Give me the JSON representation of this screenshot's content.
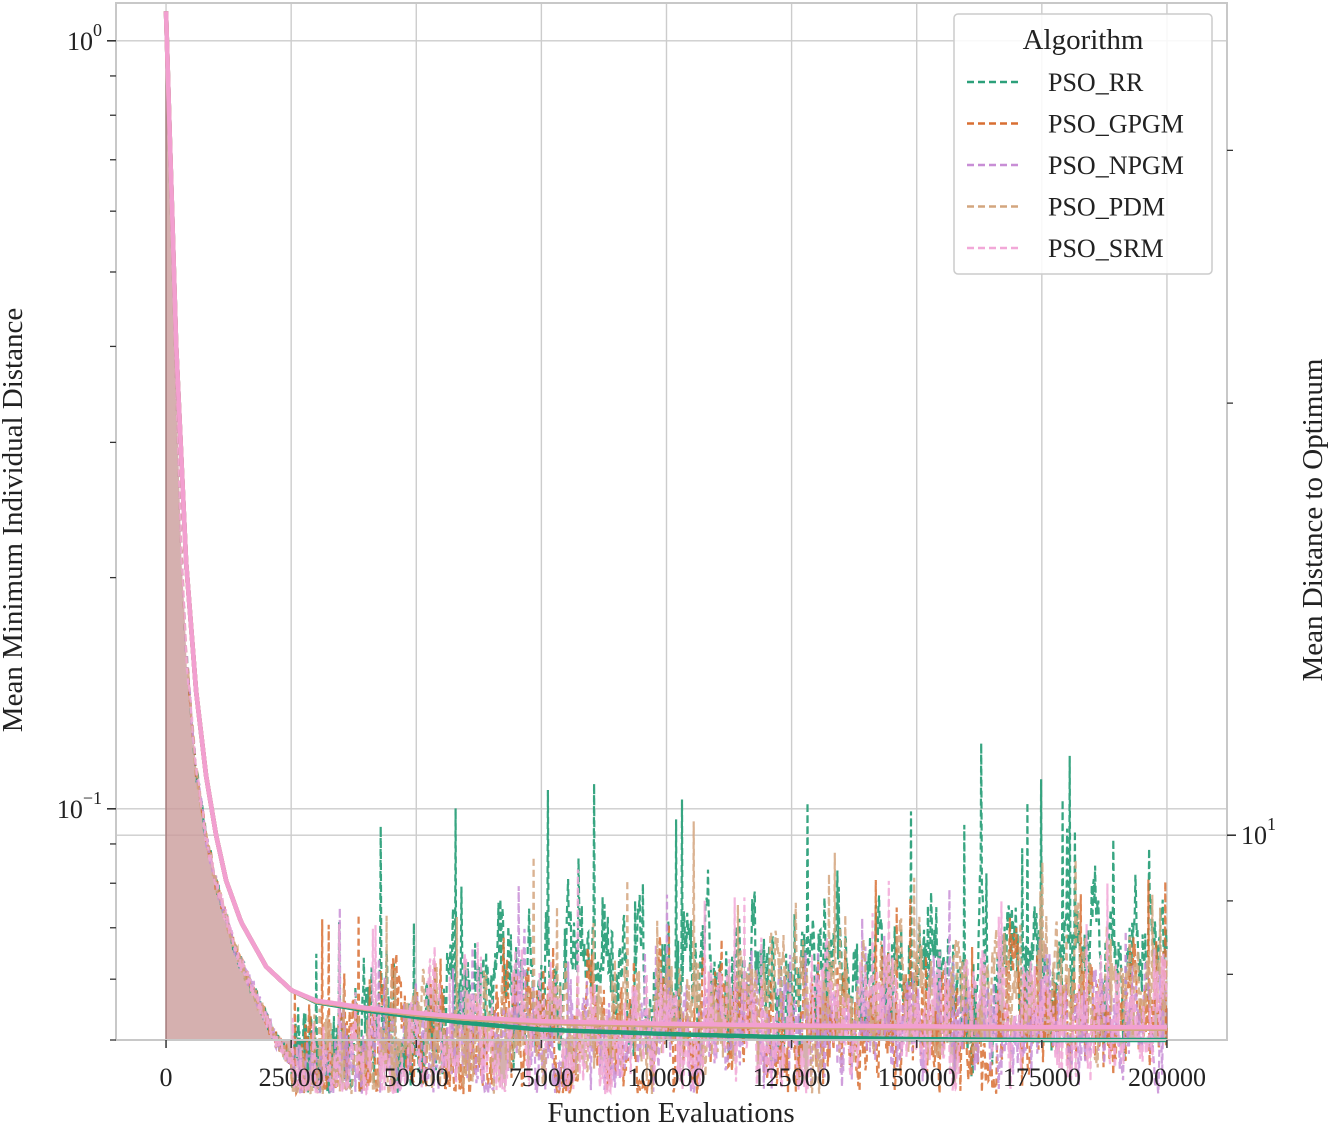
{
  "chart_data": {
    "type": "line",
    "xlabel": "Function Evaluations",
    "ylabel_left": "Mean Minimum Individual Distance",
    "ylabel_right": "Mean Distance to Optimum",
    "xlim": [
      -10000,
      212000
    ],
    "ylim_left": [
      0.05,
      1.12
    ],
    "ylim_right": [
      7.2,
      38
    ],
    "left_scale": "log",
    "right_scale": "log",
    "grid": true,
    "legend": {
      "title": "Algorithm",
      "placement": "top-right",
      "entries": [
        "PSO_RR",
        "PSO_GPGM",
        "PSO_NPGM",
        "PSO_PDM",
        "PSO_SRM"
      ]
    },
    "x_ticks": [
      0,
      25000,
      50000,
      75000,
      100000,
      125000,
      150000,
      175000,
      200000
    ],
    "x_tick_labels": [
      "0",
      "25000",
      "50000",
      "75000",
      "100000",
      "125000",
      "150000",
      "175000",
      "200000"
    ],
    "left_ticks": [
      {
        "value": 1.0,
        "base": "10",
        "exp": "0"
      },
      {
        "value": 0.1,
        "base": "10",
        "exp": "−1"
      }
    ],
    "right_ticks": [
      {
        "value": 10,
        "base": "10",
        "exp": "1"
      }
    ],
    "series": [
      {
        "name": "PSO_RR",
        "color": "#2ca07a",
        "style": "dashed",
        "axis": "left",
        "fluct_level": 0.062,
        "fluct_amp": 0.26,
        "x": [
          0,
          1000,
          2000,
          3000,
          4000,
          6000,
          8000,
          10000,
          14000,
          18000,
          22000,
          25000,
          26000,
          30000,
          40000,
          60000,
          100000,
          150000,
          200000
        ],
        "y": [
          1.0,
          0.62,
          0.36,
          0.22,
          0.16,
          0.112,
          0.092,
          0.08,
          0.065,
          0.057,
          0.05,
          0.047,
          0.045,
          0.048,
          0.052,
          0.057,
          0.06,
          0.063,
          0.066
        ]
      },
      {
        "name": "PSO_GPGM",
        "color": "#d86f32",
        "style": "dashed",
        "axis": "left",
        "fluct_level": 0.048,
        "fluct_amp": 0.24,
        "x": [
          0,
          1000,
          2000,
          3000,
          4000,
          6000,
          8000,
          10000,
          14000,
          18000,
          22000,
          25000,
          26000,
          30000,
          40000,
          60000,
          100000,
          150000,
          200000
        ],
        "y": [
          1.0,
          0.62,
          0.36,
          0.22,
          0.16,
          0.112,
          0.092,
          0.08,
          0.065,
          0.057,
          0.05,
          0.047,
          0.044,
          0.045,
          0.047,
          0.049,
          0.051,
          0.053,
          0.054
        ]
      },
      {
        "name": "PSO_NPGM",
        "color": "#c88ed6",
        "style": "dashed",
        "axis": "left",
        "fluct_level": 0.047,
        "fluct_amp": 0.2,
        "x": [
          0,
          1000,
          2000,
          3000,
          4000,
          6000,
          8000,
          10000,
          14000,
          18000,
          22000,
          25000,
          26000,
          30000,
          40000,
          60000,
          100000,
          150000,
          200000
        ],
        "y": [
          1.0,
          0.62,
          0.36,
          0.22,
          0.16,
          0.112,
          0.092,
          0.08,
          0.065,
          0.057,
          0.05,
          0.047,
          0.044,
          0.045,
          0.047,
          0.049,
          0.051,
          0.053,
          0.054
        ]
      },
      {
        "name": "PSO_PDM",
        "color": "#d3a57e",
        "style": "dashed",
        "axis": "left",
        "fluct_level": 0.05,
        "fluct_amp": 0.22,
        "x": [
          0,
          1000,
          2000,
          3000,
          4000,
          6000,
          8000,
          10000,
          14000,
          18000,
          22000,
          25000,
          26000,
          30000,
          40000,
          60000,
          100000,
          150000,
          200000
        ],
        "y": [
          1.0,
          0.62,
          0.36,
          0.22,
          0.16,
          0.112,
          0.092,
          0.08,
          0.065,
          0.057,
          0.05,
          0.047,
          0.044,
          0.046,
          0.049,
          0.052,
          0.055,
          0.058,
          0.061
        ]
      },
      {
        "name": "PSO_SRM",
        "color": "#f2a8d8",
        "style": "dashed",
        "axis": "left",
        "fluct_level": 0.047,
        "fluct_amp": 0.2,
        "x": [
          0,
          1000,
          2000,
          3000,
          4000,
          6000,
          8000,
          10000,
          14000,
          18000,
          22000,
          25000,
          26000,
          30000,
          40000,
          60000,
          100000,
          150000,
          200000
        ],
        "y": [
          1.0,
          0.62,
          0.36,
          0.22,
          0.16,
          0.112,
          0.092,
          0.08,
          0.065,
          0.057,
          0.05,
          0.047,
          0.044,
          0.045,
          0.047,
          0.049,
          0.051,
          0.053,
          0.054
        ]
      }
    ],
    "right_series": [
      {
        "name": "PSO_RR",
        "color": "#1f9c78",
        "axis": "right",
        "x": [
          0,
          2000,
          4000,
          6000,
          8000,
          10000,
          12000,
          15000,
          20000,
          25000,
          30000,
          40000,
          50000,
          60000,
          75000,
          100000,
          125000,
          150000,
          175000,
          200000
        ],
        "y": [
          37.5,
          22,
          15.5,
          12.6,
          11.0,
          10.0,
          9.3,
          8.7,
          8.1,
          7.8,
          7.65,
          7.55,
          7.47,
          7.4,
          7.32,
          7.27,
          7.23,
          7.21,
          7.2,
          7.2
        ]
      },
      {
        "name": "PSO_GPGM",
        "color": "#d86f32",
        "axis": "right",
        "x": [
          0,
          2000,
          4000,
          6000,
          8000,
          10000,
          12000,
          15000,
          20000,
          25000,
          30000,
          40000,
          50000,
          60000,
          75000,
          100000,
          125000,
          150000,
          175000,
          200000
        ],
        "y": [
          37.5,
          22,
          15.5,
          12.6,
          11.0,
          10.0,
          9.3,
          8.7,
          8.1,
          7.8,
          7.66,
          7.57,
          7.5,
          7.45,
          7.4,
          7.37,
          7.35,
          7.34,
          7.33,
          7.33
        ]
      },
      {
        "name": "PSO_NPGM",
        "color": "#c88ed6",
        "axis": "right",
        "x": [
          0,
          2000,
          4000,
          6000,
          8000,
          10000,
          12000,
          15000,
          20000,
          25000,
          30000,
          40000,
          50000,
          60000,
          75000,
          100000,
          125000,
          150000,
          175000,
          200000
        ],
        "y": [
          37.5,
          22,
          15.5,
          12.6,
          11.0,
          10.0,
          9.3,
          8.7,
          8.1,
          7.8,
          7.66,
          7.57,
          7.5,
          7.45,
          7.41,
          7.38,
          7.36,
          7.35,
          7.34,
          7.34
        ]
      },
      {
        "name": "PSO_PDM",
        "color": "#d3a57e",
        "axis": "right",
        "x": [
          0,
          2000,
          4000,
          6000,
          8000,
          10000,
          12000,
          15000,
          20000,
          25000,
          30000,
          40000,
          50000,
          60000,
          75000,
          100000,
          125000,
          150000,
          175000,
          200000
        ],
        "y": [
          37.5,
          22,
          15.5,
          12.6,
          11.0,
          10.0,
          9.3,
          8.7,
          8.1,
          7.8,
          7.66,
          7.57,
          7.5,
          7.45,
          7.4,
          7.37,
          7.35,
          7.34,
          7.33,
          7.33
        ]
      },
      {
        "name": "PSO_SRM",
        "color": "#f29fd0",
        "axis": "right",
        "x": [
          0,
          2000,
          4000,
          6000,
          8000,
          10000,
          12000,
          15000,
          20000,
          25000,
          30000,
          40000,
          50000,
          60000,
          75000,
          100000,
          125000,
          150000,
          175000,
          200000
        ],
        "y": [
          37.5,
          22,
          15.5,
          12.6,
          11.0,
          10.0,
          9.3,
          8.7,
          8.1,
          7.8,
          7.67,
          7.58,
          7.52,
          7.47,
          7.42,
          7.39,
          7.37,
          7.36,
          7.35,
          7.35
        ]
      }
    ],
    "fill_color": "#c99a98",
    "grid_color": "#cccccc",
    "spine_color": "#c8c8c8"
  }
}
